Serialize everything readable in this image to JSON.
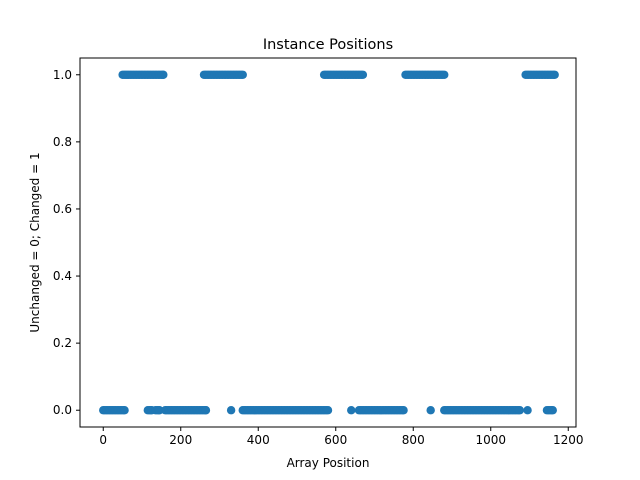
{
  "chart_data": {
    "type": "scatter",
    "title": "Instance Positions",
    "xlabel": "Array Position",
    "ylabel": "Unchanged = 0; Changed = 1",
    "xlim": [
      -60,
      1220
    ],
    "ylim": [
      -0.05,
      1.05
    ],
    "xticks": [
      0,
      200,
      400,
      600,
      800,
      1000,
      1200
    ],
    "yticks": [
      0.0,
      0.2,
      0.4,
      0.6,
      0.8,
      1.0
    ],
    "xtick_labels": [
      "0",
      "200",
      "400",
      "600",
      "800",
      "1000",
      "1200"
    ],
    "ytick_labels": [
      "0.0",
      "0.2",
      "0.4",
      "0.6",
      "0.8",
      "1.0"
    ],
    "grid": false,
    "marker_color": "#1f77b4",
    "point_step": 4,
    "changed_ranges": [
      [
        50,
        155
      ],
      [
        260,
        360
      ],
      [
        570,
        670
      ],
      [
        780,
        880
      ],
      [
        1090,
        1165
      ]
    ],
    "unchanged_ranges": [
      [
        0,
        55
      ],
      [
        115,
        125
      ],
      [
        135,
        145
      ],
      [
        160,
        265
      ],
      [
        330,
        330
      ],
      [
        360,
        580
      ],
      [
        640,
        640
      ],
      [
        660,
        775
      ],
      [
        845,
        845
      ],
      [
        880,
        1075
      ],
      [
        1095,
        1095
      ],
      [
        1145,
        1160
      ]
    ]
  }
}
